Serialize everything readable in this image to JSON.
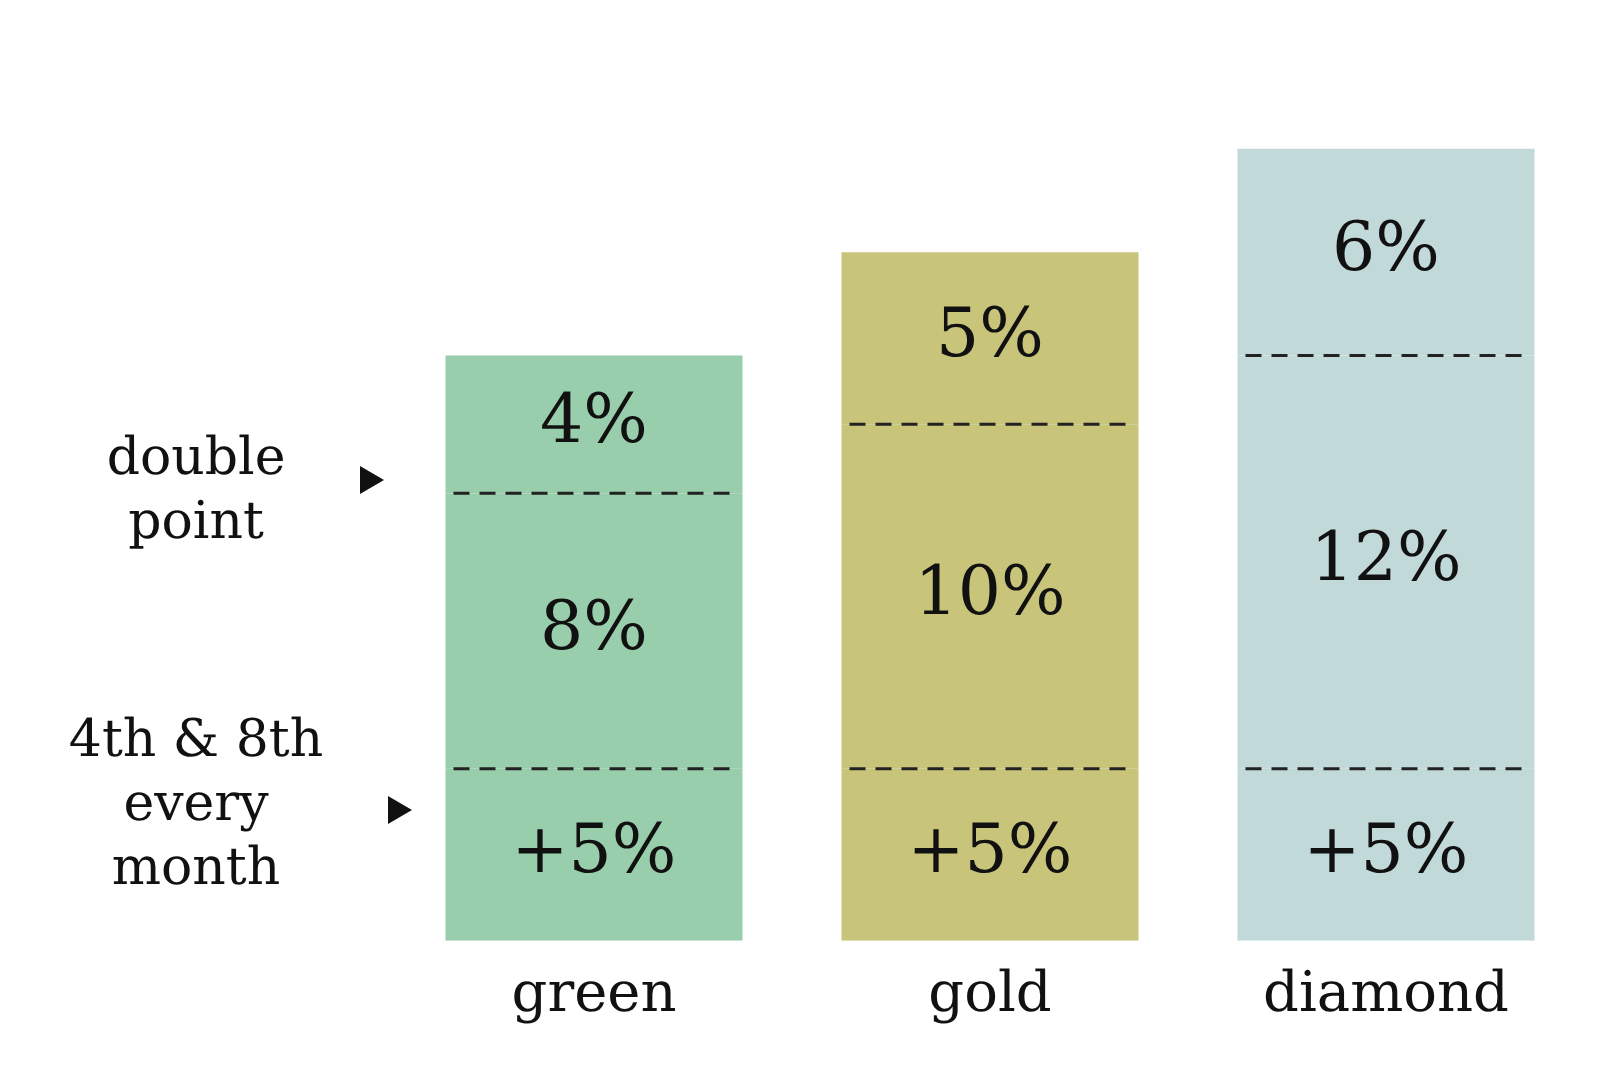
{
  "chart_data": {
    "type": "bar",
    "stacked": true,
    "categories": [
      "green",
      "gold",
      "diamond"
    ],
    "series": [
      {
        "colors": [
          "#98ceab",
          "#c8c47a",
          "#c2d9da"
        ],
        "values": [
          5,
          5,
          5
        ],
        "value_labels": [
          "+5%",
          "+5%",
          "+5%"
        ]
      },
      {
        "colors": [
          "#98ceab",
          "#c8c47a",
          "#c2d9da"
        ],
        "values": [
          8,
          10,
          12
        ],
        "value_labels": [
          "8%",
          "10%",
          "12%"
        ]
      },
      {
        "colors": [
          "#98ceab",
          "#c8c47a",
          "#c2d9da"
        ],
        "values": [
          4,
          5,
          6
        ],
        "value_labels": [
          "4%",
          "5%",
          "6%"
        ]
      }
    ],
    "annotations": [
      "double point",
      "4th & 8th every month"
    ],
    "tick_labels": "x",
    "grid": false,
    "legend": false
  }
}
